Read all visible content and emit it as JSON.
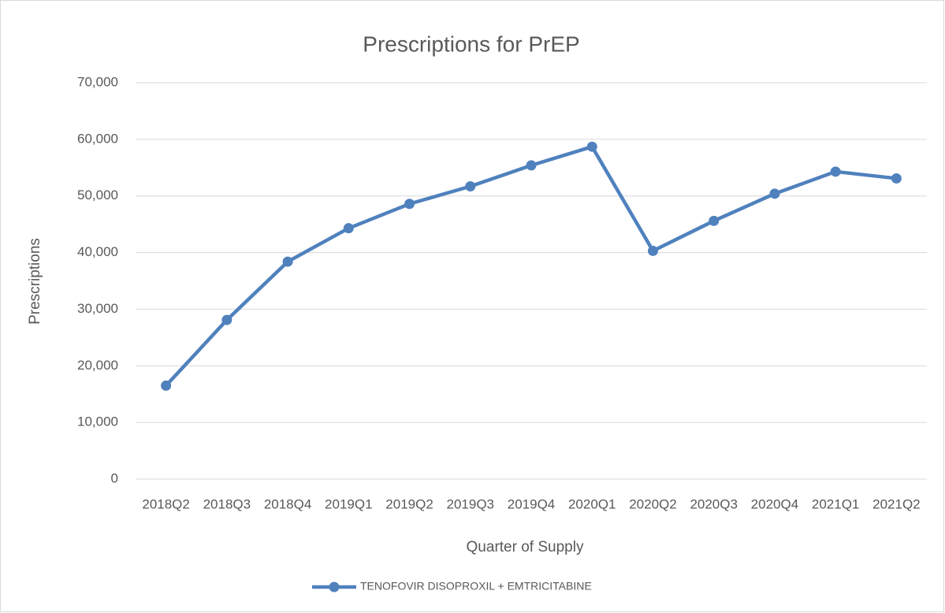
{
  "chart_data": {
    "type": "line",
    "title": "Prescriptions for PrEP",
    "x_label": "Quarter of Supply",
    "y_label": "Prescriptions",
    "categories": [
      "2018Q2",
      "2018Q3",
      "2018Q4",
      "2019Q1",
      "2019Q2",
      "2019Q3",
      "2019Q4",
      "2020Q1",
      "2020Q2",
      "2020Q3",
      "2020Q4",
      "2021Q1",
      "2021Q2"
    ],
    "series": [
      {
        "name": "TENOFOVIR DISOPROXIL + EMTRICITABINE",
        "color": "#4f81bd",
        "values": [
          16500,
          28100,
          38400,
          44300,
          48600,
          51700,
          55400,
          58700,
          40300,
          45600,
          50400,
          54300,
          53100
        ]
      }
    ],
    "ylim": [
      0,
      70000
    ],
    "yticks": [
      0,
      {
        "value": 10000,
        "label": "10,000"
      },
      {
        "value": 20000,
        "label": "20,000"
      },
      {
        "value": 30000,
        "label": "30,000"
      },
      {
        "value": 40000,
        "label": "40,000"
      },
      {
        "value": 50000,
        "label": "50,000"
      },
      {
        "value": 60000,
        "label": "60,000"
      },
      {
        "value": 70000,
        "label": "70,000"
      }
    ],
    "grid": true,
    "legend": "bottom"
  }
}
